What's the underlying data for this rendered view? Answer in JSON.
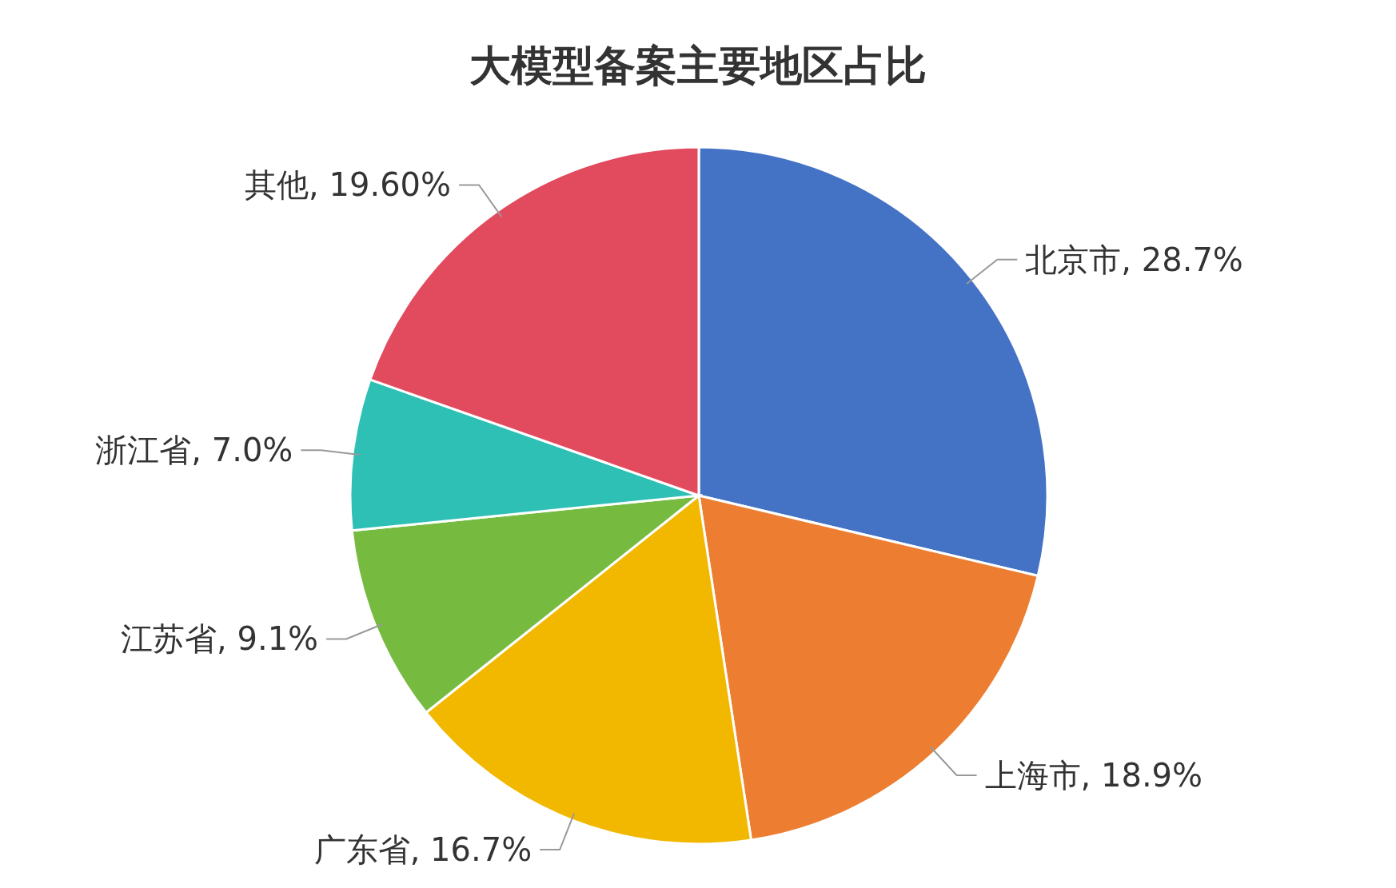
{
  "chart_data": {
    "type": "pie",
    "title": "大模型备案主要地区占比",
    "categories": [
      "北京市",
      "上海市",
      "广东省",
      "江苏省",
      "浙江省",
      "其他"
    ],
    "values": [
      28.7,
      18.9,
      16.7,
      9.1,
      7.0,
      19.6
    ],
    "value_labels": [
      "28.7%",
      "18.9%",
      "16.7%",
      "9.1%",
      "7.0%",
      "19.60%"
    ],
    "colors": [
      "#4472c4",
      "#ed7d31",
      "#f2b800",
      "#76bb40",
      "#2ec0b4",
      "#e24a5e"
    ],
    "legend": false
  }
}
